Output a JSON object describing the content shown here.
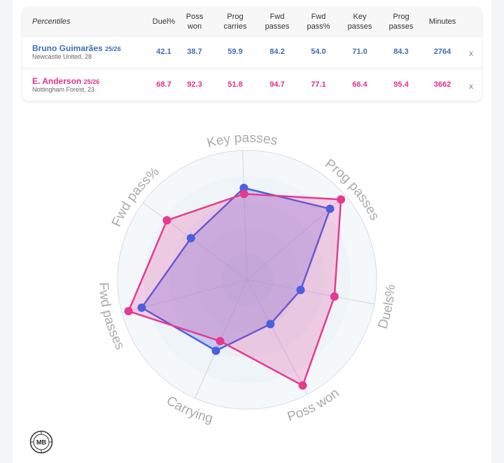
{
  "table": {
    "corner_label": "Percentiles",
    "columns": [
      "Duel%",
      "Poss\nwon",
      "Prog\ncarries",
      "Fwd\npasses",
      "Fwd\npass%",
      "Key\npasses",
      "Prog\npasses",
      "Minutes"
    ],
    "remove_label": "x",
    "players": [
      {
        "name": "Bruno Guimarães",
        "season": "25/26",
        "team": "Newcastle United, 28",
        "values": [
          "42.1",
          "38.7",
          "59.9",
          "84.2",
          "54.0",
          "71.0",
          "84.3",
          "2764"
        ],
        "color": "#3f6db8"
      },
      {
        "name": "E. Anderson",
        "season": "25/26",
        "team": "Nottingham Forest, 23",
        "values": [
          "68.7",
          "92.3",
          "51.8",
          "94.7",
          "77.1",
          "66.4",
          "95.4",
          "3662"
        ],
        "color": "#e0308a"
      }
    ]
  },
  "chart_data": {
    "type": "radar",
    "axes": [
      "Key passes",
      "Prog passes",
      "Duels%",
      "Poss won",
      "Carrying",
      "Fwd passes",
      "Fwd pass%"
    ],
    "range": [
      0,
      100
    ],
    "series": [
      {
        "name": "Bruno Guimarães",
        "values": [
          71.0,
          84.3,
          42.1,
          38.7,
          59.9,
          84.2,
          54.0
        ],
        "color": "#4b5fe0"
      },
      {
        "name": "E. Anderson",
        "values": [
          66.4,
          95.4,
          68.7,
          92.3,
          51.8,
          94.7,
          77.1
        ],
        "color": "#e63a8f"
      }
    ]
  },
  "logo": {
    "text": "MB"
  }
}
